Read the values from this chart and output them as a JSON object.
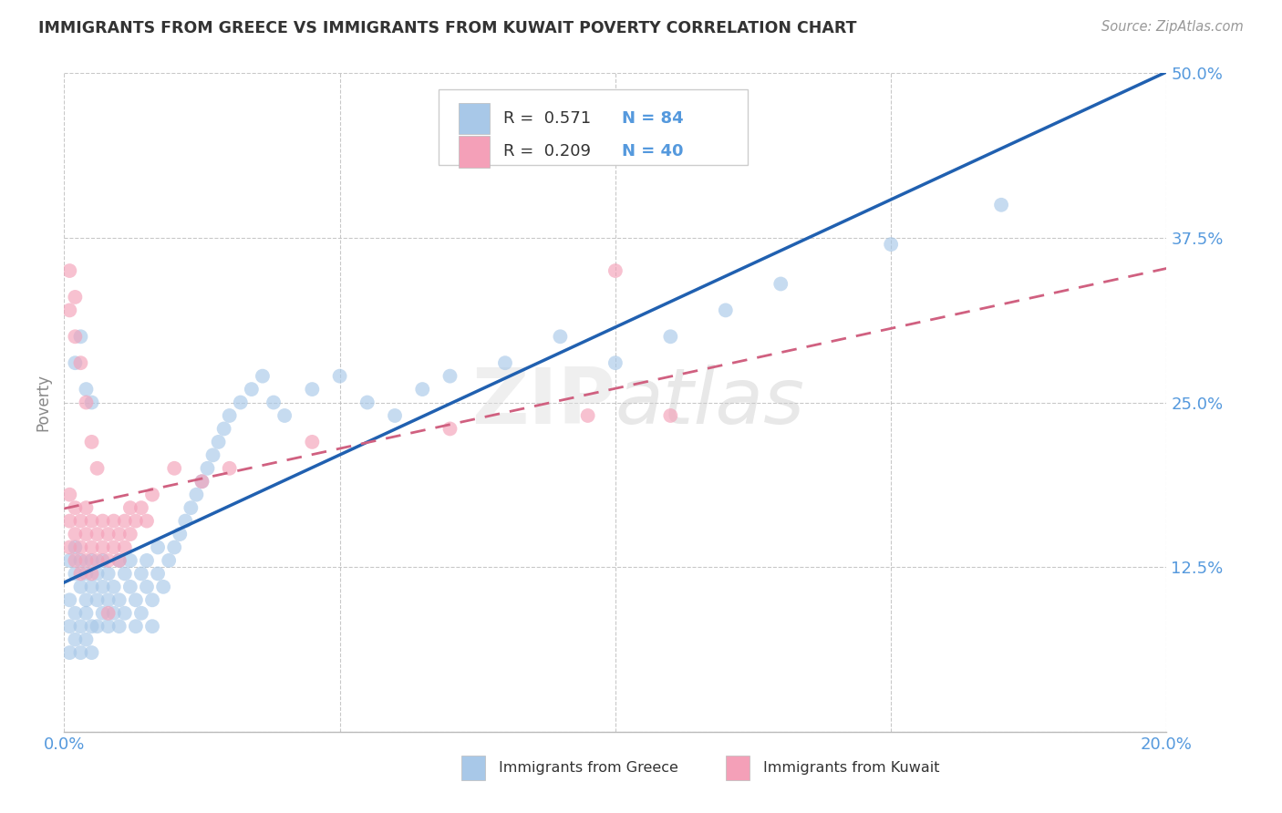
{
  "title": "IMMIGRANTS FROM GREECE VS IMMIGRANTS FROM KUWAIT POVERTY CORRELATION CHART",
  "source_text": "Source: ZipAtlas.com",
  "ylabel": "Poverty",
  "xlim": [
    0.0,
    0.2
  ],
  "ylim": [
    0.0,
    0.5
  ],
  "xticks": [
    0.0,
    0.05,
    0.1,
    0.15,
    0.2
  ],
  "xtick_labels": [
    "0.0%",
    "",
    "",
    "",
    "20.0%"
  ],
  "yticks": [
    0.0,
    0.125,
    0.25,
    0.375,
    0.5
  ],
  "ytick_labels": [
    "",
    "12.5%",
    "25.0%",
    "37.5%",
    "50.0%"
  ],
  "watermark": "ZIPatlas",
  "color_greece": "#A8C8E8",
  "color_kuwait": "#F4A0B8",
  "color_line_greece": "#2060B0",
  "color_line_kuwait": "#D06080",
  "background_color": "#FFFFFF",
  "grid_color": "#CCCCCC",
  "title_color": "#333333",
  "axis_label_color": "#5599DD",
  "greece_x": [
    0.001,
    0.001,
    0.001,
    0.001,
    0.002,
    0.002,
    0.002,
    0.002,
    0.003,
    0.003,
    0.003,
    0.003,
    0.004,
    0.004,
    0.004,
    0.004,
    0.005,
    0.005,
    0.005,
    0.005,
    0.006,
    0.006,
    0.006,
    0.007,
    0.007,
    0.007,
    0.008,
    0.008,
    0.008,
    0.009,
    0.009,
    0.01,
    0.01,
    0.01,
    0.011,
    0.011,
    0.012,
    0.012,
    0.013,
    0.013,
    0.014,
    0.014,
    0.015,
    0.015,
    0.016,
    0.016,
    0.017,
    0.017,
    0.018,
    0.019,
    0.02,
    0.021,
    0.022,
    0.023,
    0.024,
    0.025,
    0.026,
    0.027,
    0.028,
    0.029,
    0.03,
    0.032,
    0.034,
    0.036,
    0.038,
    0.04,
    0.045,
    0.05,
    0.055,
    0.06,
    0.065,
    0.07,
    0.08,
    0.09,
    0.1,
    0.11,
    0.12,
    0.13,
    0.15,
    0.17,
    0.002,
    0.003,
    0.004,
    0.005
  ],
  "greece_y": [
    0.1,
    0.13,
    0.08,
    0.06,
    0.12,
    0.14,
    0.09,
    0.07,
    0.11,
    0.13,
    0.08,
    0.06,
    0.1,
    0.12,
    0.09,
    0.07,
    0.11,
    0.13,
    0.08,
    0.06,
    0.1,
    0.12,
    0.08,
    0.11,
    0.13,
    0.09,
    0.1,
    0.12,
    0.08,
    0.11,
    0.09,
    0.13,
    0.1,
    0.08,
    0.12,
    0.09,
    0.11,
    0.13,
    0.1,
    0.08,
    0.12,
    0.09,
    0.11,
    0.13,
    0.1,
    0.08,
    0.12,
    0.14,
    0.11,
    0.13,
    0.14,
    0.15,
    0.16,
    0.17,
    0.18,
    0.19,
    0.2,
    0.21,
    0.22,
    0.23,
    0.24,
    0.25,
    0.26,
    0.27,
    0.25,
    0.24,
    0.26,
    0.27,
    0.25,
    0.24,
    0.26,
    0.27,
    0.28,
    0.3,
    0.28,
    0.3,
    0.32,
    0.34,
    0.37,
    0.4,
    0.28,
    0.3,
    0.26,
    0.25
  ],
  "kuwait_x": [
    0.001,
    0.001,
    0.001,
    0.002,
    0.002,
    0.002,
    0.003,
    0.003,
    0.003,
    0.004,
    0.004,
    0.004,
    0.005,
    0.005,
    0.005,
    0.006,
    0.006,
    0.007,
    0.007,
    0.008,
    0.008,
    0.009,
    0.009,
    0.01,
    0.01,
    0.011,
    0.011,
    0.012,
    0.012,
    0.013,
    0.014,
    0.015,
    0.016,
    0.02,
    0.025,
    0.03,
    0.045,
    0.07,
    0.095,
    0.11
  ],
  "kuwait_y": [
    0.14,
    0.16,
    0.18,
    0.15,
    0.13,
    0.17,
    0.14,
    0.16,
    0.12,
    0.15,
    0.13,
    0.17,
    0.14,
    0.16,
    0.12,
    0.15,
    0.13,
    0.14,
    0.16,
    0.15,
    0.13,
    0.14,
    0.16,
    0.15,
    0.13,
    0.14,
    0.16,
    0.15,
    0.17,
    0.16,
    0.17,
    0.16,
    0.18,
    0.2,
    0.19,
    0.2,
    0.22,
    0.23,
    0.24,
    0.24
  ],
  "kuwait_extra_x": [
    0.001,
    0.001,
    0.002,
    0.002,
    0.003,
    0.004,
    0.005,
    0.006,
    0.008,
    0.1
  ],
  "kuwait_extra_y": [
    0.35,
    0.32,
    0.33,
    0.3,
    0.28,
    0.25,
    0.22,
    0.2,
    0.09,
    0.35
  ]
}
